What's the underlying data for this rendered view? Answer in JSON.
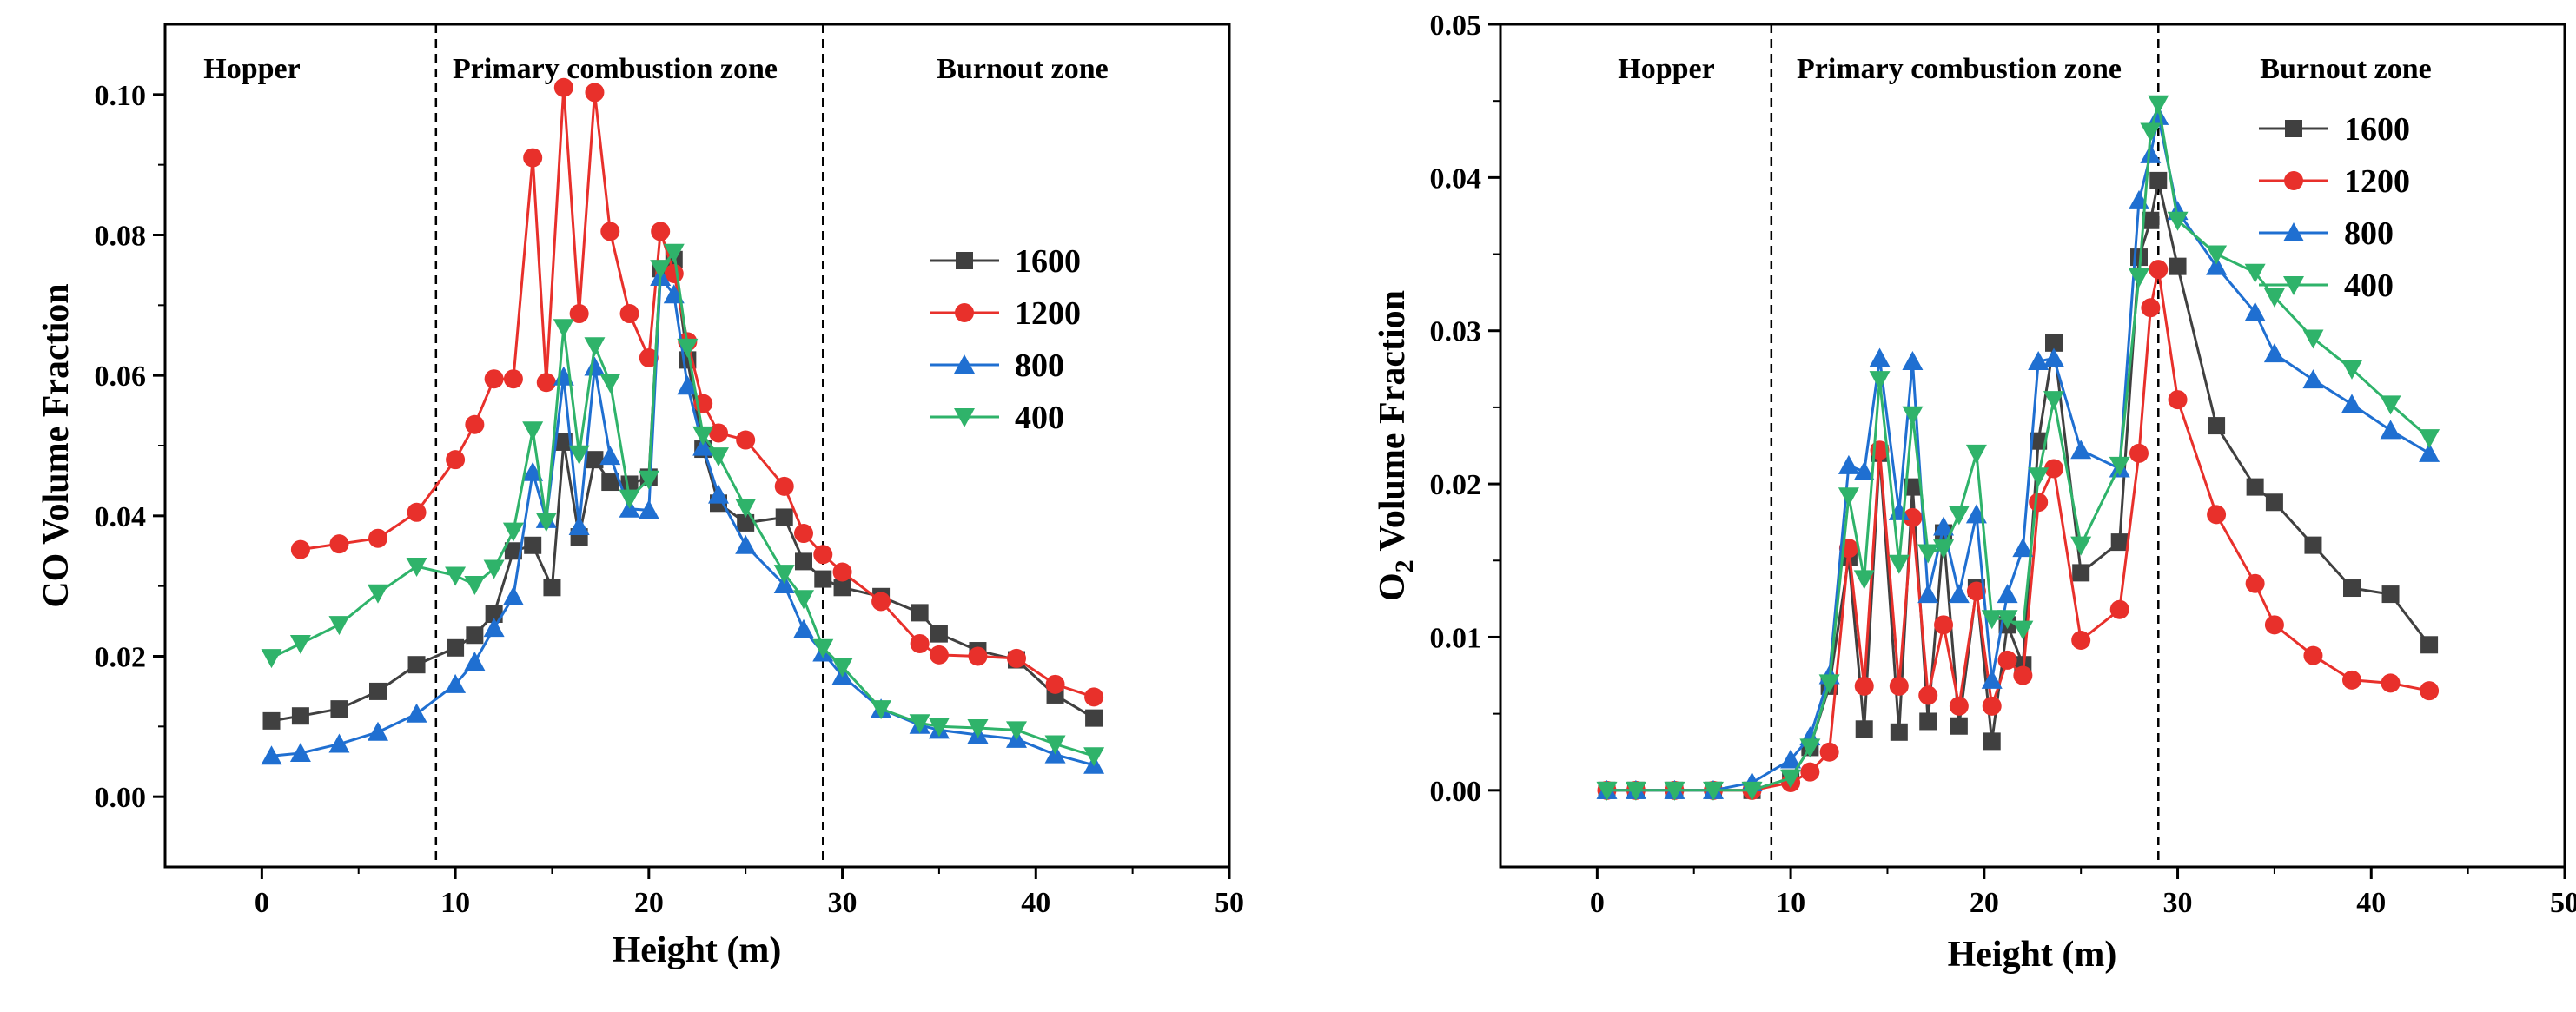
{
  "colors": {
    "1600": "#404040",
    "1200": "#e8302b",
    "800": "#1f6fd1",
    "400": "#2fb36a",
    "axis": "#000000"
  },
  "chart_data": [
    {
      "type": "line",
      "title": "",
      "xlabel": "Height (m)",
      "ylabel": "CO Volume Fraction",
      "xlim": [
        -5,
        50
      ],
      "ylim": [
        -0.01,
        0.11
      ],
      "xticks": [
        "0",
        "10",
        "20",
        "30",
        "40",
        "50"
      ],
      "yticks": [
        "0.00",
        "0.02",
        "0.04",
        "0.06",
        "0.08",
        "0.10"
      ],
      "zone_lines": [
        9,
        29
      ],
      "zones": [
        "Hopper",
        "Primary combustion zone",
        "Burnout zone"
      ],
      "legend_position": "right",
      "series": [
        {
          "name": "1600",
          "marker": "square",
          "x": [
            0.5,
            2,
            4,
            6,
            8,
            10,
            11,
            12,
            13,
            14,
            15,
            15.6,
            16.4,
            17.2,
            18,
            19,
            20,
            20.6,
            21.3,
            22,
            22.8,
            23.6,
            25,
            27,
            28,
            29,
            30,
            32,
            34,
            35,
            37,
            39,
            41,
            43
          ],
          "y": [
            0.0108,
            0.0115,
            0.0125,
            0.015,
            0.0188,
            0.0212,
            0.023,
            0.026,
            0.035,
            0.0358,
            0.0298,
            0.0505,
            0.037,
            0.048,
            0.0448,
            0.0445,
            0.0455,
            0.0752,
            0.0765,
            0.0622,
            0.0495,
            0.0418,
            0.039,
            0.0398,
            0.0335,
            0.031,
            0.0298,
            0.0285,
            0.0262,
            0.0232,
            0.0208,
            0.0195,
            0.0145,
            0.0112
          ]
        },
        {
          "name": "1200",
          "marker": "circle",
          "x": [
            2,
            4,
            6,
            8,
            10,
            11,
            12,
            13,
            14,
            14.7,
            15.6,
            16.4,
            17.2,
            18,
            19,
            20,
            20.6,
            21.3,
            22,
            22.8,
            23.6,
            25,
            27,
            28,
            29,
            30,
            32,
            34,
            35,
            37,
            39,
            41,
            43
          ],
          "y": [
            0.0352,
            0.036,
            0.0368,
            0.0405,
            0.048,
            0.053,
            0.0595,
            0.0595,
            0.091,
            0.059,
            0.101,
            0.0688,
            0.1003,
            0.0805,
            0.0688,
            0.0625,
            0.0805,
            0.0745,
            0.0648,
            0.056,
            0.0518,
            0.0508,
            0.0442,
            0.0375,
            0.0345,
            0.032,
            0.0278,
            0.0218,
            0.0202,
            0.02,
            0.0197,
            0.016,
            0.0142
          ]
        },
        {
          "name": "800",
          "marker": "triangle-up",
          "x": [
            0.5,
            2,
            4,
            6,
            8,
            10,
            11,
            12,
            13,
            14,
            14.7,
            15.6,
            16.4,
            17.2,
            18,
            19,
            20,
            20.6,
            21.3,
            22,
            22.8,
            23.6,
            25,
            27,
            28,
            29,
            30,
            32,
            34,
            35,
            37,
            39,
            41,
            43
          ],
          "y": [
            0.0058,
            0.0062,
            0.0075,
            0.0092,
            0.0118,
            0.016,
            0.0192,
            0.024,
            0.0285,
            0.0462,
            0.0395,
            0.0598,
            0.0385,
            0.0612,
            0.0485,
            0.041,
            0.0408,
            0.074,
            0.0715,
            0.0585,
            0.0498,
            0.043,
            0.0358,
            0.0302,
            0.0238,
            0.0205,
            0.0172,
            0.0125,
            0.0102,
            0.0095,
            0.0088,
            0.0082,
            0.006,
            0.0045
          ]
        },
        {
          "name": "400",
          "marker": "triangle-down",
          "x": [
            0.5,
            2,
            4,
            6,
            8,
            10,
            11,
            12,
            13,
            14,
            14.7,
            15.6,
            16.4,
            17.2,
            18,
            19,
            20,
            20.6,
            21.3,
            22,
            22.8,
            23.6,
            25,
            27,
            28,
            29,
            30,
            32,
            34,
            35,
            37,
            39,
            41,
            43
          ],
          "y": [
            0.0198,
            0.0218,
            0.0245,
            0.029,
            0.0328,
            0.0315,
            0.0302,
            0.0325,
            0.0378,
            0.0522,
            0.0392,
            0.0668,
            0.0488,
            0.0642,
            0.059,
            0.0425,
            0.0452,
            0.0752,
            0.0775,
            0.064,
            0.0515,
            0.0485,
            0.0412,
            0.0318,
            0.0282,
            0.0212,
            0.0185,
            0.0125,
            0.0105,
            0.01,
            0.0098,
            0.0095,
            0.0075,
            0.0058
          ]
        }
      ]
    },
    {
      "type": "line",
      "title": "",
      "xlabel": "Height (m)",
      "ylabel": "O",
      "ylabel_sub": "2",
      "ylabel_rest": " Volume Fraction",
      "xlim": [
        -5,
        50
      ],
      "ylim": [
        -0.005,
        0.05
      ],
      "xticks": [
        "0",
        "10",
        "20",
        "30",
        "40",
        "50"
      ],
      "yticks": [
        "0.00",
        "0.01",
        "0.02",
        "0.03",
        "0.04",
        "0.05"
      ],
      "zone_lines": [
        9,
        29
      ],
      "zones": [
        "Hopper",
        "Primary combustion zone",
        "Burnout zone"
      ],
      "legend_position": "top-right",
      "series": [
        {
          "name": "1600",
          "marker": "square",
          "x": [
            0.5,
            2,
            4,
            6,
            8,
            10,
            11,
            12,
            13,
            13.8,
            14.6,
            15.6,
            16.3,
            17.1,
            17.9,
            18.7,
            19.6,
            20.4,
            21.2,
            22,
            22.8,
            23.6,
            25,
            27,
            28,
            28.6,
            29,
            30,
            32,
            34,
            35,
            37,
            39,
            41,
            43
          ],
          "y": [
            0,
            0,
            0,
            0,
            0,
            0.0008,
            0.0028,
            0.0068,
            0.0152,
            0.004,
            0.022,
            0.0038,
            0.0198,
            0.0045,
            0.0168,
            0.0042,
            0.0132,
            0.0032,
            0.0108,
            0.0082,
            0.0228,
            0.0292,
            0.0142,
            0.0162,
            0.0348,
            0.0372,
            0.0398,
            0.0342,
            0.0238,
            0.0198,
            0.0188,
            0.016,
            0.0132,
            0.0128,
            0.0095
          ]
        },
        {
          "name": "1200",
          "marker": "circle",
          "x": [
            0.5,
            2,
            4,
            6,
            8,
            10,
            11,
            12,
            13,
            13.8,
            14.6,
            15.6,
            16.3,
            17.1,
            17.9,
            18.7,
            19.6,
            20.4,
            21.2,
            22,
            22.8,
            23.6,
            25,
            27,
            28,
            28.6,
            29,
            30,
            32,
            34,
            35,
            37,
            39,
            41,
            43
          ],
          "y": [
            0,
            0,
            0,
            0,
            0,
            0.0005,
            0.0012,
            0.0025,
            0.0158,
            0.0068,
            0.0222,
            0.0068,
            0.0178,
            0.0062,
            0.0108,
            0.0055,
            0.013,
            0.0055,
            0.0085,
            0.0075,
            0.0188,
            0.021,
            0.0098,
            0.0118,
            0.022,
            0.0315,
            0.034,
            0.0255,
            0.018,
            0.0135,
            0.0108,
            0.0088,
            0.0072,
            0.007,
            0.0065
          ]
        },
        {
          "name": "800",
          "marker": "triangle-up",
          "x": [
            0.5,
            2,
            4,
            6,
            8,
            10,
            11,
            12,
            13,
            13.8,
            14.6,
            15.6,
            16.3,
            17.1,
            17.9,
            18.7,
            19.6,
            20.4,
            21.2,
            22,
            22.8,
            23.6,
            25,
            27,
            28,
            28.6,
            29,
            30,
            32,
            34,
            35,
            37,
            39,
            41,
            43
          ],
          "y": [
            0,
            0,
            0,
            0,
            0.0005,
            0.002,
            0.0035,
            0.0075,
            0.0212,
            0.0208,
            0.0282,
            0.0182,
            0.028,
            0.0128,
            0.0172,
            0.0128,
            0.018,
            0.0072,
            0.0128,
            0.0158,
            0.028,
            0.0282,
            0.0222,
            0.021,
            0.0385,
            0.0415,
            0.044,
            0.0378,
            0.0342,
            0.0312,
            0.0285,
            0.0268,
            0.0252,
            0.0235,
            0.022
          ]
        },
        {
          "name": "400",
          "marker": "triangle-down",
          "x": [
            0.5,
            2,
            4,
            6,
            8,
            10,
            11,
            12,
            13,
            13.8,
            14.6,
            15.6,
            16.3,
            17.1,
            17.9,
            18.7,
            19.6,
            20.4,
            21.2,
            22,
            22.8,
            23.6,
            25,
            27,
            28,
            28.6,
            29,
            30,
            32,
            34,
            35,
            37,
            39,
            41,
            43
          ],
          "y": [
            0,
            0,
            0,
            0,
            0,
            0.0008,
            0.0028,
            0.007,
            0.0192,
            0.0138,
            0.0268,
            0.0148,
            0.0245,
            0.0155,
            0.0158,
            0.018,
            0.022,
            0.0112,
            0.0112,
            0.0105,
            0.0205,
            0.0255,
            0.016,
            0.0212,
            0.0335,
            0.043,
            0.0448,
            0.0372,
            0.035,
            0.0338,
            0.0322,
            0.0295,
            0.0275,
            0.0252,
            0.023
          ]
        }
      ]
    }
  ]
}
